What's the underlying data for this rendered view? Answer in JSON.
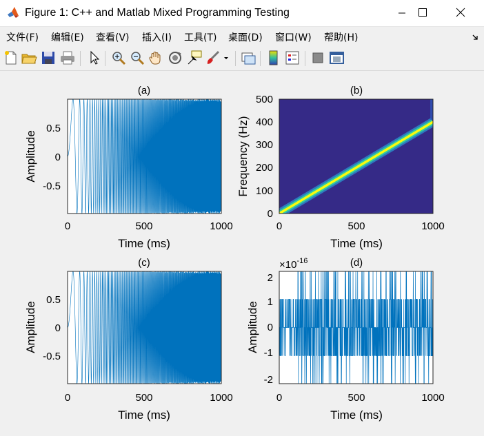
{
  "window": {
    "title": "Figure 1: C++ and Matlab Mixed Programming Testing",
    "controls": {
      "minimize": "minimize",
      "maximize": "maximize",
      "close": "close"
    }
  },
  "menu": [
    "文件(F)",
    "编辑(E)",
    "查看(V)",
    "插入(I)",
    "工具(T)",
    "桌面(D)",
    "窗口(W)",
    "帮助(H)"
  ],
  "toolbar": {
    "icons": [
      "new-figure-icon",
      "open-file-icon",
      "save-icon",
      "print-icon",
      "select-pointer-icon",
      "zoom-in-icon",
      "zoom-out-icon",
      "pan-hand-icon",
      "rotate-3d-icon",
      "data-cursor-icon",
      "brush-icon",
      "brush-dropdown-icon",
      "link-plot-icon",
      "insert-colorbar-icon",
      "insert-legend-icon",
      "hide-plot-tools-icon",
      "show-plot-tools-icon"
    ]
  },
  "colors": {
    "line": "#0072bd",
    "heatmap_bg": "#352a87",
    "ridge": "#f9fb0e"
  },
  "chart_data": [
    {
      "panel": "a",
      "type": "line",
      "title": "(a)",
      "xlabel": "Time (ms)",
      "ylabel": "Amplitude",
      "xlim": [
        0,
        1000
      ],
      "ylim": [
        -1,
        1
      ],
      "xticks": [
        "0",
        "500",
        "1000"
      ],
      "yticks": [
        "0.5",
        "0",
        "-0.5"
      ],
      "series": [
        {
          "description": "linear chirp, unit amplitude",
          "x_range": [
            0,
            1000
          ],
          "amplitude": 1
        }
      ]
    },
    {
      "panel": "b",
      "type": "heatmap",
      "title": "(b)",
      "xlabel": "Time (ms)",
      "ylabel": "Frequency (Hz)",
      "xlim": [
        0,
        1000
      ],
      "ylim": [
        0,
        500
      ],
      "xticks": [
        "0",
        "500",
        "1000"
      ],
      "yticks": [
        "500",
        "400",
        "300",
        "200",
        "100",
        "0"
      ],
      "ridge": {
        "x": [
          0,
          1000
        ],
        "y": [
          0,
          400
        ]
      }
    },
    {
      "panel": "c",
      "type": "line",
      "title": "(c)",
      "xlabel": "Time (ms)",
      "ylabel": "Amplitude",
      "xlim": [
        0,
        1000
      ],
      "ylim": [
        -1,
        1
      ],
      "xticks": [
        "0",
        "500",
        "1000"
      ],
      "yticks": [
        "0.5",
        "0",
        "-0.5"
      ],
      "series": [
        {
          "description": "linear chirp, unit amplitude",
          "x_range": [
            0,
            1000
          ],
          "amplitude": 1
        }
      ]
    },
    {
      "panel": "d",
      "type": "line",
      "title": "(d)",
      "xlabel": "Time (ms)",
      "ylabel": "Amplitude",
      "xlim": [
        0,
        1000
      ],
      "ylim": [
        -2.2,
        2.2
      ],
      "exponent": "×10",
      "exponent_power": "-16",
      "xticks": [
        "0",
        "500",
        "1000"
      ],
      "yticks": [
        "2",
        "1",
        "0",
        "-1",
        "-2"
      ],
      "series": [
        {
          "description": "residual error, quantized levels",
          "levels": [
            -2.22,
            -1.11,
            0,
            1.11,
            2.22
          ]
        }
      ]
    }
  ]
}
